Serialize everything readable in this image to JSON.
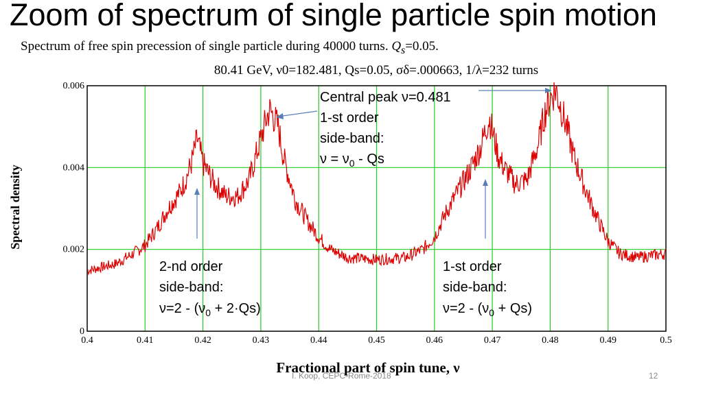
{
  "slide": {
    "title": "Zoom of spectrum of single particle spin motion",
    "subtitle_prefix": "Spectrum of free spin precession of single particle during 40000 turns.",
    "subtitle_symbol": "Q",
    "subtitle_subscript": "s",
    "subtitle_suffix": "=0.05.",
    "footer_left": "I. Koop, CEPC-Rome-2018",
    "page_number": "12"
  },
  "chart_data": {
    "type": "line",
    "title": "80.41 GeV, ν0=182.481, Qs=0.05, σδ=.000663, 1/λ=232 turns",
    "xlabel": "Fractional part of spin tune, ν",
    "ylabel": "Spectral density",
    "xlim": [
      0.4,
      0.5
    ],
    "ylim": [
      0,
      0.006
    ],
    "xticks": [
      "0.4",
      "0.41",
      "0.42",
      "0.43",
      "0.44",
      "0.45",
      "0.46",
      "0.47",
      "0.48",
      "0.49",
      "0.5"
    ],
    "yticks": [
      "0",
      "0.002",
      "0.004",
      "0.006"
    ],
    "grid": true,
    "grid_color": "#22cc22",
    "line_color": "#dd0000",
    "series": [
      {
        "x": [
          0.4,
          0.405,
          0.408,
          0.41,
          0.412,
          0.414,
          0.416,
          0.417,
          0.418,
          0.419,
          0.42,
          0.422,
          0.424,
          0.426,
          0.428,
          0.429,
          0.43,
          0.431,
          0.4315,
          0.432,
          0.433,
          0.434,
          0.436,
          0.438,
          0.44,
          0.442,
          0.445,
          0.45,
          0.455,
          0.458,
          0.46,
          0.462,
          0.464,
          0.466,
          0.468,
          0.469,
          0.4695,
          0.47,
          0.471,
          0.472,
          0.474,
          0.476,
          0.478,
          0.479,
          0.48,
          0.481,
          0.482,
          0.483,
          0.484,
          0.486,
          0.488,
          0.49,
          0.492,
          0.495,
          0.5
        ],
        "y": [
          0.00148,
          0.00165,
          0.0019,
          0.0021,
          0.0025,
          0.003,
          0.0034,
          0.0037,
          0.0041,
          0.0047,
          0.0041,
          0.0036,
          0.0033,
          0.0033,
          0.0037,
          0.0042,
          0.0047,
          0.0052,
          0.0054,
          0.0053,
          0.005,
          0.0042,
          0.0032,
          0.0027,
          0.0023,
          0.002,
          0.0018,
          0.00175,
          0.0018,
          0.002,
          0.0023,
          0.0029,
          0.0034,
          0.0039,
          0.0045,
          0.005,
          0.0052,
          0.0049,
          0.0043,
          0.004,
          0.0036,
          0.0037,
          0.0046,
          0.0053,
          0.0057,
          0.0059,
          0.0054,
          0.0049,
          0.0043,
          0.0035,
          0.0028,
          0.0022,
          0.0019,
          0.0018,
          0.0019
        ]
      }
    ],
    "annotations": [
      {
        "lines": [
          "Central peak ν=0.481",
          "1-st order",
          "side-band:",
          "ν = ν",
          "0",
          " - Qs"
        ],
        "target": "central-peak"
      },
      {
        "lines": [
          "2-nd order",
          "side-band:",
          "ν=2 - (ν",
          "0",
          " + 2·Qs)"
        ],
        "target": "peak-0.419"
      },
      {
        "lines": [
          "1-st order",
          "side-band:",
          "ν=2 - (ν",
          "0",
          " + Qs)"
        ],
        "target": "peak-0.469"
      }
    ]
  }
}
